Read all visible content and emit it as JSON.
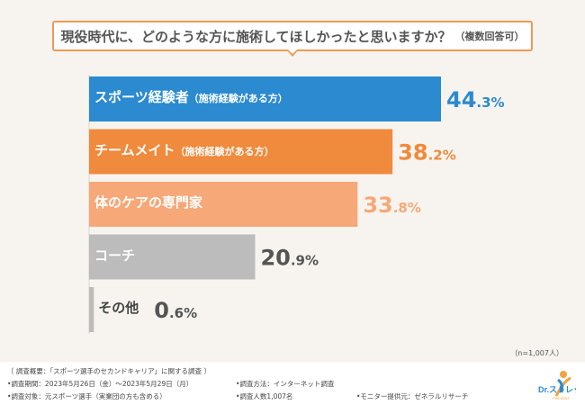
{
  "title": {
    "main": "現役時代に、どのような方に施術してほしかったと思いますか？",
    "sub": "（複数回答可）"
  },
  "colors": {
    "background": "#f7f4ef",
    "title_border": "#ee9a54"
  },
  "chart_data": {
    "type": "bar",
    "orientation": "horizontal",
    "title": "現役時代に、どのような方に施術してほしかったと思いますか？（複数回答可）",
    "unit": "%",
    "xlim": [
      0,
      50
    ],
    "categories": [
      {
        "label": "スポーツ経験者",
        "sub": "（施術経験がある方）",
        "color": "#2b8ad0",
        "label_color": "light"
      },
      {
        "label": "チームメイト",
        "sub": "（施術経験がある方）",
        "color": "#f08a3c",
        "label_color": "light"
      },
      {
        "label": "体のケアの専門家",
        "sub": "",
        "color": "#f7a878",
        "label_color": "light"
      },
      {
        "label": "コーチ",
        "sub": "",
        "color": "#bcbcbc",
        "label_color": "light"
      },
      {
        "label": "その他",
        "sub": "",
        "color": "#bcbcbc",
        "label_color": "dark"
      }
    ],
    "values": [
      44.3,
      38.2,
      33.8,
      20.9,
      0.6
    ],
    "value_colors": [
      "#2b8ad0",
      "#f08a3c",
      "#f7a878",
      "#555555",
      "#555555"
    ]
  },
  "sample_note": "（n=1,007人）",
  "footer": {
    "overview": "〔 調査概要：「スポーツ選手のセカンドキャリア」に関する調査 〕",
    "period": "•調査期間：2023年5月26日（金）～2023年5月29日（月）",
    "method": "•調査方法：インターネット調査",
    "target": "•調査対象：元スポーツ選手（実業団の方も含める）",
    "count": "•調査人数1,007名",
    "monitor": "•モニター提供元：ゼネラルリサーチ"
  },
  "logo": {
    "text": "Dr.ストレッチ",
    "sub": "PRESENT"
  }
}
